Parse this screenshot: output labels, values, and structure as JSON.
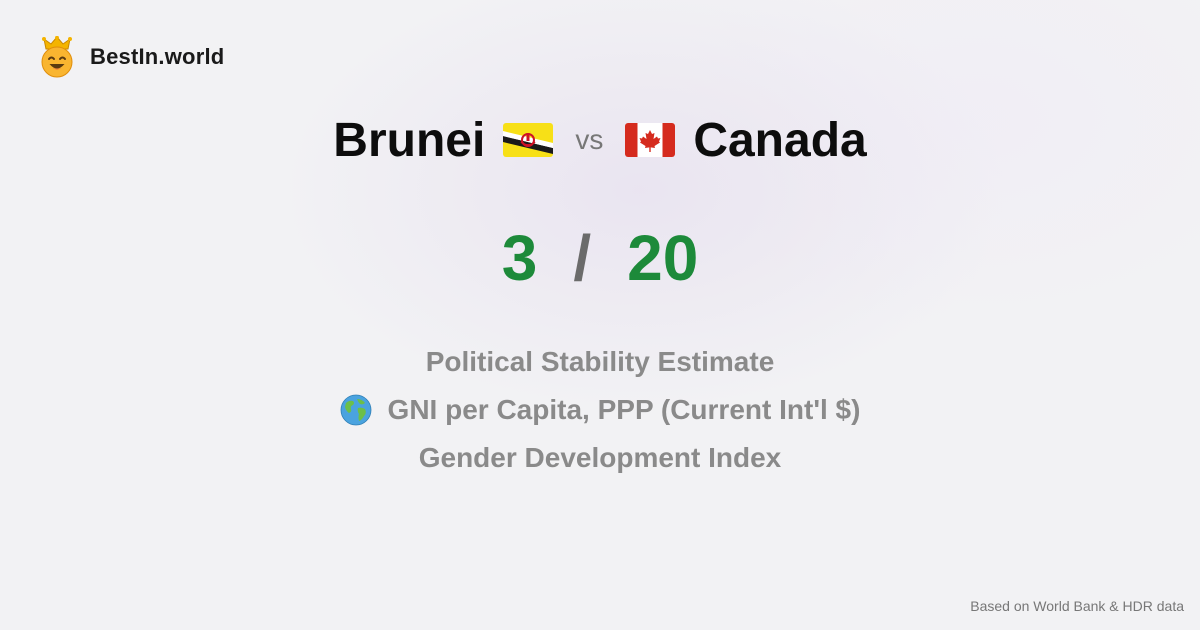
{
  "brand": {
    "name": "BestIn.world",
    "icon": "crown-smiley-icon"
  },
  "comparison": {
    "country_a": "Brunei",
    "flag_a": "brunei-flag-icon",
    "vs_label": "vs",
    "country_b": "Canada",
    "flag_b": "canada-flag-icon"
  },
  "score": {
    "a": "3",
    "separator": "/",
    "b": "20"
  },
  "metrics": [
    {
      "label": "Political Stability Estimate"
    },
    {
      "label": "GNI per Capita, PPP (Current Int'l $)",
      "icon": "globe-icon"
    },
    {
      "label": "Gender Development Index"
    }
  ],
  "footer": {
    "source": "Based on World Bank & HDR data"
  },
  "colors": {
    "score": "#1d8a3a",
    "metric_text": "#8a8a8a",
    "title_text": "#0d0d0d",
    "background": "#f2f2f4"
  }
}
